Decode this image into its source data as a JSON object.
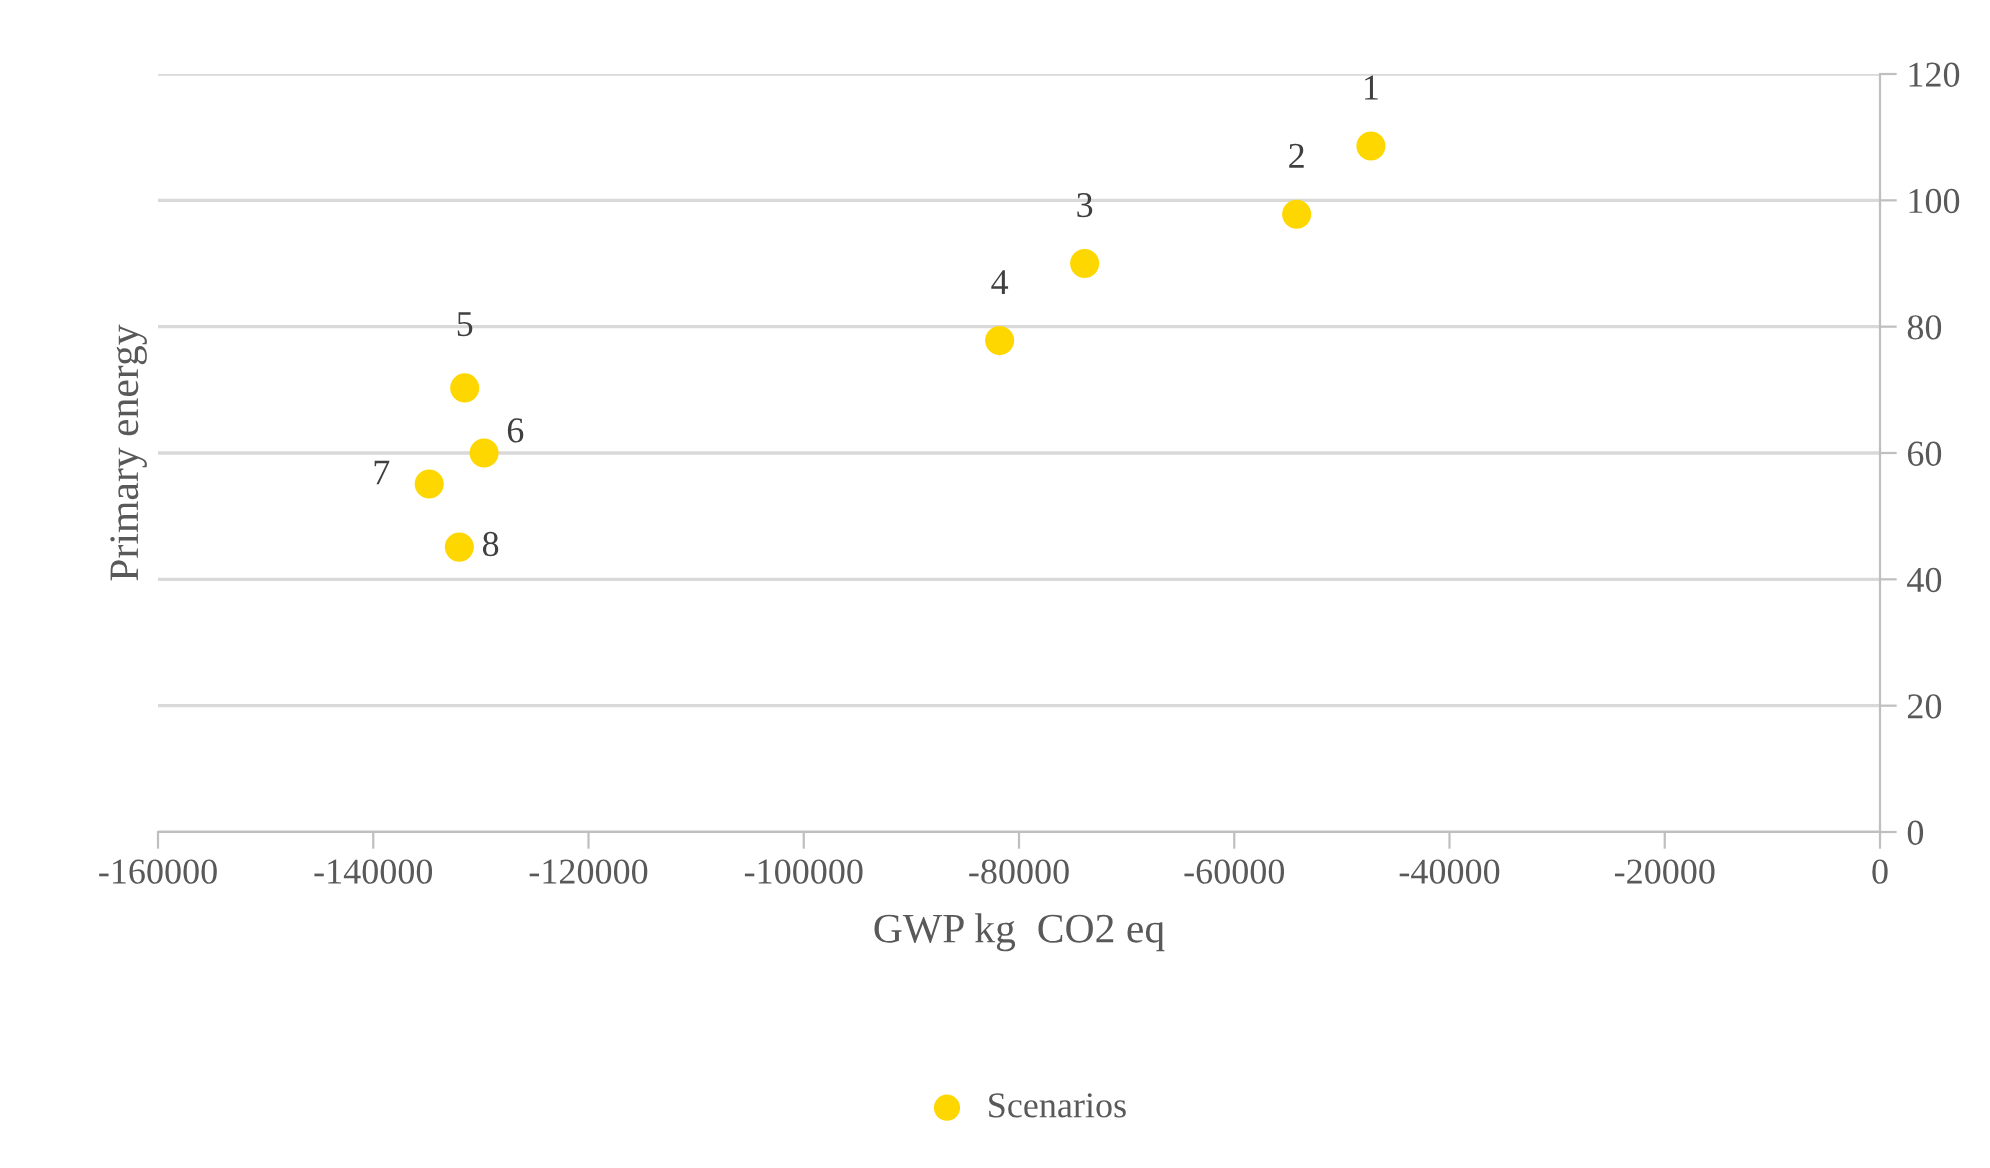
{
  "chart_data": {
    "type": "scatter",
    "xlabel": "GWP kg  CO2 eq",
    "ylabel": "Primary energy",
    "x": [
      -47300,
      -54200,
      -73900,
      -81800,
      -131500,
      -129700,
      -134800,
      -132000
    ],
    "series": [
      {
        "name": "Scenarios",
        "color": "#ffd700",
        "values": [
          108.6,
          97.8,
          90,
          77.8,
          70.3,
          60,
          55.1,
          45.1
        ]
      }
    ],
    "annotations": [
      {
        "text": "1",
        "x": -47300,
        "y": 108.6
      },
      {
        "text": "2",
        "x": -54200,
        "y": 97.8
      },
      {
        "text": "3",
        "x": -73900,
        "y": 90
      },
      {
        "text": "4",
        "x": -81800,
        "y": 77.8
      },
      {
        "text": "5",
        "x": -131500,
        "y": 70.3
      },
      {
        "text": "6",
        "x": -129700,
        "y": 60
      },
      {
        "text": "7",
        "x": -134800,
        "y": 55.1
      },
      {
        "text": "8",
        "x": -132000,
        "y": 45.1
      }
    ],
    "xlim": [
      -160000,
      0
    ],
    "ylim": [
      0,
      120
    ],
    "xticks": [
      -160000,
      -140000,
      -120000,
      -100000,
      -80000,
      -60000,
      -40000,
      -20000,
      0
    ],
    "yticks": [
      0,
      20,
      40,
      60,
      80,
      100,
      120
    ],
    "grid": "y",
    "legend": "bottom",
    "marker": "circle"
  }
}
